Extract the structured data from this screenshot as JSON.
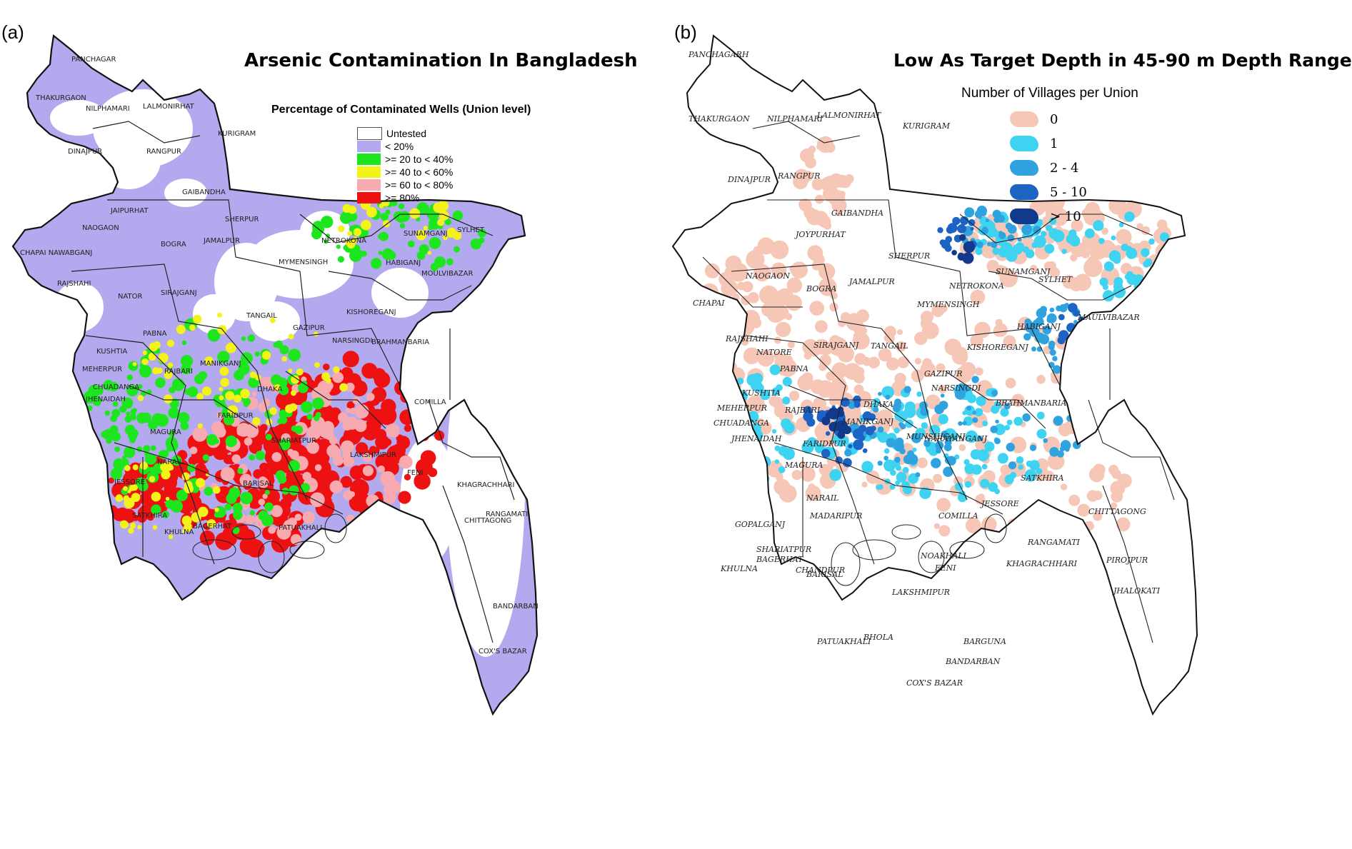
{
  "panel_a": {
    "label": "(a)",
    "title": "Arsenic Contamination In Bangladesh",
    "legend_title": "Percentage of Contaminated Wells (Union level)",
    "legend": [
      {
        "label": "Untested",
        "color": "#ffffff"
      },
      {
        "label": "< 20%",
        "color": "#b3a9ee"
      },
      {
        "label": ">= 20  to < 40%",
        "color": "#1ee61e"
      },
      {
        "label": ">= 40  to < 60%",
        "color": "#f3f31a"
      },
      {
        "label": ">= 60  to < 80%",
        "color": "#f7aab0"
      },
      {
        "label": ">= 80%",
        "color": "#ee1111"
      }
    ],
    "district_labels": [
      "PANCHAGAR",
      "THAKURGAON",
      "NILPHAMARI",
      "LALMONIRHAT",
      "KURIGRAM",
      "DINAJPUR",
      "RANGPUR",
      "GAIBANDHA",
      "JAIPURHAT",
      "NAOGAON",
      "CHAPAI NAWABGANJ",
      "RAJSHAHI",
      "NATOR",
      "BOGRA",
      "SIRAJGANJ",
      "PABNA",
      "SHERPUR",
      "JAMALPUR",
      "MYMENSINGH",
      "NETROKONA",
      "SUNAMGANJ",
      "SYLHET",
      "MOULVIBAZAR",
      "HABIGANJ",
      "KISHOREGANJ",
      "TANGAIL",
      "GAZIPUR",
      "NARSINGDI",
      "BRAHMANBARIA",
      "KUSHTIA",
      "MEHERPUR",
      "CHUADANGA",
      "JHENAIDAH",
      "RAJBARI",
      "MANIKGANJ",
      "DHAKA",
      "FARIDPUR",
      "MAGURA",
      "NARAIL",
      "JESSORE",
      "SATKHIRA",
      "KHULNA",
      "BAGERHAT",
      "SHARIATPUR",
      "BARISAL",
      "PATUAKHALI",
      "COMILLA",
      "LAKSHMIPUR",
      "FENI",
      "KHAGRACHHARI",
      "RANGAMATI",
      "CHITTAGONG",
      "BANDARBAN",
      "COX'S BAZAR"
    ]
  },
  "panel_b": {
    "label": "(b)",
    "title": "Low As Target Depth in 45-90 m Depth Range",
    "legend_title": "Number of Villages per Union",
    "legend": [
      {
        "label": "0",
        "color": "#f6c7b7"
      },
      {
        "label": "1",
        "color": "#3fd3f2"
      },
      {
        "label": "2 - 4",
        "color": "#2ea3e0"
      },
      {
        "label": "5 - 10",
        "color": "#1c63c4"
      },
      {
        "label": "> 10",
        "color": "#123a8c"
      }
    ],
    "district_labels": [
      "PANCHAGARH",
      "THAKURGAON",
      "NILPHAMARI",
      "LALMONIRHAT",
      "KURIGRAM",
      "DINAJPUR",
      "RANGPUR",
      "GAIBANDHA",
      "JOYPURHAT",
      "NAOGAON",
      "CHAPAI",
      "RAJSHAHI",
      "NATORE",
      "BOGRA",
      "SIRAJGANJ",
      "PABNA",
      "SHERPUR",
      "JAMALPUR",
      "MYMENSINGH",
      "NETROKONA",
      "SUNAMGANJ",
      "SYLHET",
      "MAULVIBAZAR",
      "HABIGANJ",
      "KISHOREGANJ",
      "TANGAIL",
      "GAZIPUR",
      "NARSINGDI",
      "BRAHMANBARIA",
      "KUSHTIA",
      "MEHERPUR",
      "CHUADANGA",
      "JHENAIDAH",
      "RAJBARI",
      "MANIKGANJ",
      "DHAKA",
      "NARAYANGANJ",
      "MUNSHIGANJ",
      "FARIDPUR",
      "MAGURA",
      "NARAIL",
      "MADARIPUR",
      "GOPALGANJ",
      "SHARIATPUR",
      "CHANDPUR",
      "COMILLA",
      "JESSORE",
      "SATKHIRA",
      "KHULNA",
      "BAGERHAT",
      "BARISAL",
      "LAKSHMIPUR",
      "NOAKHALI",
      "FENI",
      "KHAGRACHHARI",
      "RANGAMATI",
      "CHITTAGONG",
      "PIROJPUR",
      "JHALOKATI",
      "BHOLA",
      "PATUAKHALI",
      "BARGUNA",
      "BANDARBAN",
      "COX'S BAZAR"
    ]
  }
}
